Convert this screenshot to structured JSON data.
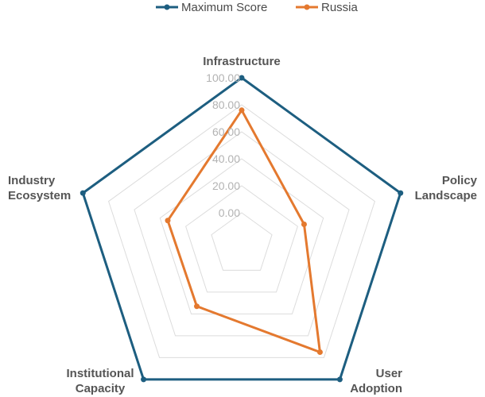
{
  "chart_data": {
    "type": "radar",
    "axes": [
      {
        "lines": [
          "Infrastructure"
        ]
      },
      {
        "lines": [
          "Policy",
          "Landscape"
        ]
      },
      {
        "lines": [
          "User",
          "Adoption"
        ]
      },
      {
        "lines": [
          "Institutional",
          "Capacity"
        ]
      },
      {
        "lines": [
          "Industry",
          "Ecosystem"
        ]
      }
    ],
    "ticks": [
      "0.00",
      "20.00",
      "40.00",
      "60.00",
      "80.00",
      "100.00"
    ],
    "range": [
      0,
      100
    ],
    "grid": true,
    "legend_position": "top-center",
    "series": [
      {
        "name": "Maximum Score",
        "color": "#1d5e80",
        "values": [
          100,
          100,
          100,
          100,
          100
        ]
      },
      {
        "name": "Russia",
        "color": "#e4792f",
        "values": [
          76,
          25,
          75,
          33,
          34
        ]
      }
    ]
  }
}
